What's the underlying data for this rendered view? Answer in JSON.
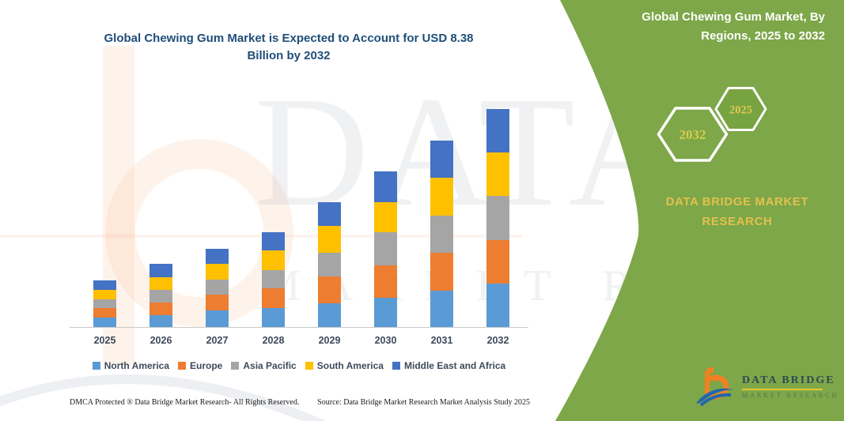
{
  "left": {
    "title": "Global Chewing Gum Market is Expected to Account for USD 8.38 Billion by 2032",
    "footer_left": "DMCA Protected ® Data Bridge Market Research-  All Rights Reserved.",
    "footer_right": "Source: Data Bridge Market Research  Market Analysis Study 2025"
  },
  "right_panel": {
    "bg_color": "#78A341",
    "header": "Global Chewing Gum Market, By Regions, 2025 to 2032",
    "hexagons": [
      {
        "label": "2032"
      },
      {
        "label": "2025"
      }
    ],
    "brand_heading": "DATA BRIDGE MARKET RESEARCH",
    "logo": {
      "name": "DATA BRIDGE",
      "subtitle": "MARKET RESEARCH"
    }
  },
  "watermark": {
    "line1": "DATA BRIDGE",
    "line2": "MARKET RESEARCH"
  },
  "chart_data": {
    "type": "bar",
    "stacked": true,
    "title": "Global Chewing Gum Market is Expected to Account for USD 8.38 Billion by 2032",
    "unit": "USD Billion",
    "xlabel": "",
    "ylabel": "",
    "y_axis_visible": false,
    "grid": false,
    "legend_position": "bottom",
    "categories": [
      "2025",
      "2026",
      "2027",
      "2028",
      "2029",
      "2030",
      "2031",
      "2032"
    ],
    "series": [
      {
        "name": "North America",
        "color": "#5B9BD5",
        "values": [
          0.36,
          0.46,
          0.63,
          0.73,
          0.91,
          1.12,
          1.4,
          1.67
        ]
      },
      {
        "name": "Europe",
        "color": "#ED7D31",
        "values": [
          0.37,
          0.49,
          0.61,
          0.76,
          1.03,
          1.25,
          1.46,
          1.68
        ]
      },
      {
        "name": "Asia Pacific",
        "color": "#A5A5A5",
        "values": [
          0.34,
          0.48,
          0.58,
          0.7,
          0.91,
          1.27,
          1.43,
          1.7
        ]
      },
      {
        "name": "South America",
        "color": "#FFC000",
        "values": [
          0.37,
          0.49,
          0.61,
          0.76,
          1.03,
          1.15,
          1.46,
          1.67
        ]
      },
      {
        "name": "Middle East and Africa",
        "color": "#4472C4",
        "values": [
          0.36,
          0.51,
          0.58,
          0.7,
          0.91,
          1.19,
          1.43,
          1.66
        ]
      }
    ],
    "totals_by_year": [
      1.8,
      2.43,
      3.01,
      3.65,
      4.79,
      5.98,
      7.18,
      8.38
    ]
  }
}
